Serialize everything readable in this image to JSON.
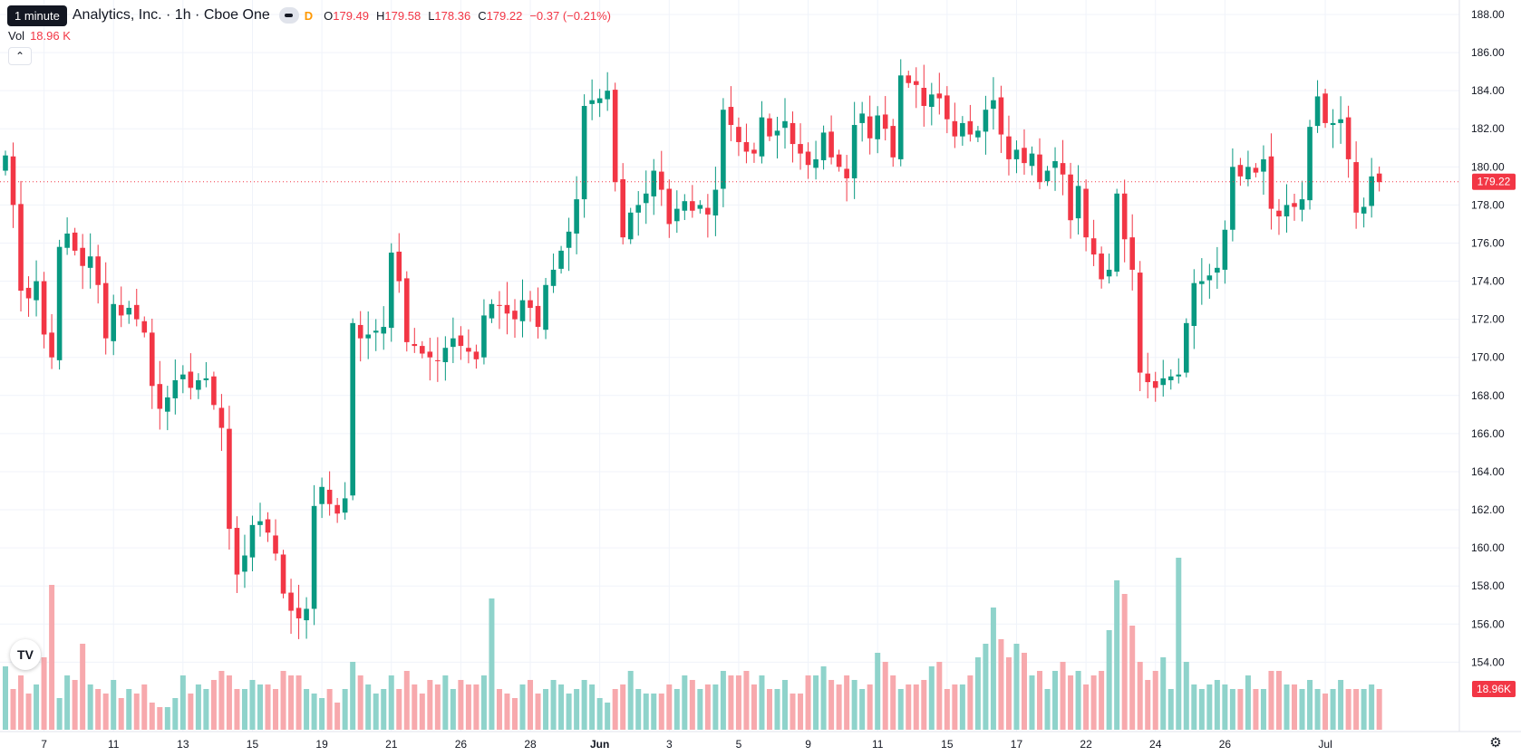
{
  "legend": {
    "tooltip": "1 minute",
    "symbol": "Analytics, Inc. · 1h · Cboe One",
    "d_badge": "D",
    "o_label": "O",
    "o_value": "179.49",
    "h_label": "H",
    "h_value": "179.58",
    "l_label": "L",
    "l_value": "178.36",
    "c_label": "C",
    "c_value": "179.22",
    "change": "−0.37 (−0.21%)",
    "vol_label": "Vol",
    "vol_value": "18.96 K"
  },
  "controls": {
    "collapse_icon": "chevron-up-icon",
    "logo_text": "TV",
    "settings_icon": "gear-icon"
  },
  "colors": {
    "up": "#089981",
    "down": "#f23645",
    "up_volume": "#8fd3cb",
    "down_volume": "#f7a9ad",
    "grid": "#f0f3fa",
    "price_line": "#f23645"
  },
  "chart_data": {
    "type": "candlestick",
    "price_axis": {
      "ticks": [
        "188.00",
        "186.00",
        "184.00",
        "182.00",
        "180.00",
        "178.00",
        "176.00",
        "174.00",
        "172.00",
        "170.00",
        "168.00",
        "166.00",
        "164.00",
        "162.00",
        "160.00",
        "158.00",
        "156.00",
        "154.00"
      ],
      "min": 153.0,
      "max": 189.0
    },
    "time_axis": {
      "ticks": [
        {
          "label": "7",
          "i": 5
        },
        {
          "label": "11",
          "i": 14
        },
        {
          "label": "13",
          "i": 23
        },
        {
          "label": "15",
          "i": 32
        },
        {
          "label": "19",
          "i": 41
        },
        {
          "label": "21",
          "i": 50
        },
        {
          "label": "26",
          "i": 59
        },
        {
          "label": "28",
          "i": 68
        },
        {
          "label": "Jun",
          "i": 77,
          "bold": true
        },
        {
          "label": "3",
          "i": 86
        },
        {
          "label": "5",
          "i": 95
        },
        {
          "label": "9",
          "i": 104
        },
        {
          "label": "11",
          "i": 113
        },
        {
          "label": "15",
          "i": 122
        },
        {
          "label": "17",
          "i": 131
        },
        {
          "label": "22",
          "i": 140
        },
        {
          "label": "24",
          "i": 149
        },
        {
          "label": "26",
          "i": 158
        },
        {
          "label": "Jul",
          "i": 171
        }
      ]
    },
    "last_price_label": "179.22",
    "last_price": 179.22,
    "last_volume_label": "18.96K",
    "volume_max": 36,
    "closes": [
      180.6,
      178.0,
      173.5,
      173.1,
      174.0,
      171.2,
      170.0,
      175.8,
      176.5,
      175.6,
      174.8,
      175.3,
      173.8,
      171.0,
      172.8,
      172.2,
      172.6,
      172.0,
      171.3,
      168.5,
      167.3,
      167.9,
      168.8,
      169.1,
      168.4,
      168.8,
      168.9,
      167.5,
      166.3,
      161.0,
      158.6,
      159.6,
      161.2,
      161.4,
      160.8,
      159.7,
      157.6,
      156.7,
      156.3,
      156.8,
      162.2,
      163.2,
      162.3,
      161.8,
      162.6,
      171.8,
      171.0,
      171.2,
      171.4,
      171.6,
      175.5,
      174.0,
      170.8,
      170.6,
      170.2,
      170.0,
      169.8,
      170.5,
      171.0,
      170.6,
      170.3,
      169.9,
      172.2,
      172.8,
      172.7,
      172.3,
      172.0,
      173.0,
      172.6,
      171.6,
      173.8,
      174.6,
      175.6,
      176.6,
      178.3,
      183.2,
      183.5,
      183.6,
      184.0,
      179.2,
      176.3,
      177.6,
      178.0,
      178.6,
      179.8,
      178.8,
      177.0,
      177.8,
      178.2,
      177.7,
      178.0,
      177.5,
      178.8,
      183.0,
      182.2,
      181.3,
      180.8,
      180.7,
      182.6,
      181.6,
      181.9,
      182.4,
      181.2,
      180.7,
      180.1,
      180.4,
      181.8,
      180.5,
      180.0,
      179.4,
      182.2,
      182.8,
      181.5,
      182.7,
      182.0,
      180.5,
      184.8,
      184.4,
      184.3,
      183.2,
      183.8,
      183.6,
      182.5,
      181.6,
      182.3,
      181.7,
      181.9,
      183.0,
      183.5,
      181.7,
      180.4,
      180.9,
      180.2,
      180.7,
      179.2,
      179.8,
      180.3,
      179.6,
      177.2,
      179.0,
      176.3,
      175.4,
      174.1,
      174.6,
      178.6,
      176.2,
      174.6,
      169.2,
      168.7,
      168.4,
      168.9,
      169.0,
      169.1,
      171.8,
      173.9,
      174.0,
      174.3,
      174.7,
      176.7,
      180.0,
      179.5,
      180.0,
      179.7,
      180.4,
      177.8,
      177.4,
      178.0,
      177.9,
      178.3,
      182.1,
      183.7,
      182.3,
      182.3,
      182.5,
      180.4,
      177.6,
      177.9,
      179.5,
      179.2
    ],
    "volumes": [
      14,
      9,
      12,
      8,
      10,
      16,
      32,
      7,
      12,
      11,
      19,
      10,
      9,
      8,
      11,
      7,
      9,
      8,
      10,
      6,
      5,
      5,
      7,
      12,
      8,
      10,
      9,
      11,
      13,
      12,
      9,
      9,
      11,
      10,
      10,
      9,
      13,
      12,
      12,
      9,
      8,
      7,
      9,
      6,
      9,
      15,
      12,
      10,
      8,
      9,
      12,
      9,
      13,
      10,
      8,
      11,
      10,
      12,
      9,
      11,
      10,
      10,
      12,
      29,
      9,
      8,
      7,
      10,
      11,
      8,
      9,
      11,
      10,
      8,
      9,
      11,
      10,
      7,
      6,
      9,
      10,
      13,
      9,
      8,
      8,
      8,
      10,
      9,
      12,
      11,
      9,
      10,
      10,
      13,
      12,
      12,
      13,
      10,
      12,
      9,
      9,
      11,
      8,
      8,
      12,
      12,
      14,
      11,
      10,
      12,
      11,
      9,
      10,
      17,
      15,
      12,
      9,
      10,
      10,
      11,
      14,
      15,
      9,
      10,
      10,
      12,
      16,
      19,
      27,
      20,
      16,
      19,
      17,
      12,
      13,
      9,
      13,
      15,
      12,
      13,
      10,
      12,
      13,
      22,
      33,
      30,
      23,
      15,
      11,
      13,
      16,
      9,
      38,
      15,
      10,
      9,
      10,
      11,
      10,
      9,
      9,
      12,
      9,
      9,
      13,
      13,
      10,
      10,
      9,
      11,
      9,
      8,
      9,
      11,
      9,
      9,
      9,
      10,
      9
    ]
  }
}
